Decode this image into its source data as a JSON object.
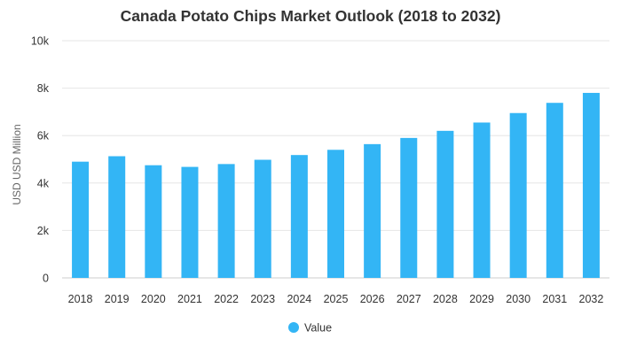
{
  "colors": {
    "bar": "#33b5f5",
    "grid": "#e6e6e6",
    "text": "#333333",
    "axis_title": "#666666"
  },
  "chart_data": {
    "type": "bar",
    "title": "Canada Potato Chips Market Outlook (2018 to 2032)",
    "xlabel": "",
    "ylabel": "USD USD Million",
    "ylim": [
      0,
      10000
    ],
    "yticks": [
      0,
      2000,
      4000,
      6000,
      8000,
      10000
    ],
    "ytick_labels": [
      "0",
      "2k",
      "4k",
      "6k",
      "8k",
      "10k"
    ],
    "grid": true,
    "legend_position": "bottom-center",
    "categories": [
      "2018",
      "2019",
      "2020",
      "2021",
      "2022",
      "2023",
      "2024",
      "2025",
      "2026",
      "2027",
      "2028",
      "2029",
      "2030",
      "2031",
      "2032"
    ],
    "series": [
      {
        "name": "Value",
        "values": [
          4900,
          5130,
          4750,
          4680,
          4800,
          4980,
          5180,
          5400,
          5640,
          5900,
          6200,
          6550,
          6950,
          7380,
          7800
        ]
      }
    ]
  }
}
